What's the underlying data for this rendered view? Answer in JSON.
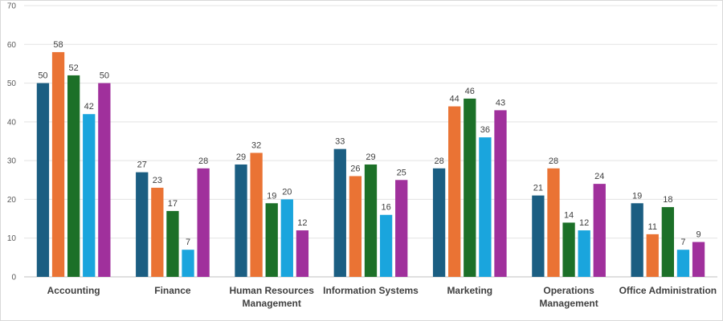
{
  "chart_data": {
    "type": "bar",
    "categories": [
      [
        "Accounting"
      ],
      [
        "Finance"
      ],
      [
        "Human Resources",
        "Management"
      ],
      [
        "Information Systems"
      ],
      [
        "Marketing"
      ],
      [
        "Operations",
        "Management"
      ],
      [
        "Office Administration"
      ]
    ],
    "series": [
      {
        "values": [
          50,
          27,
          29,
          33,
          28,
          21,
          19
        ],
        "color": "#1b5e82"
      },
      {
        "values": [
          58,
          23,
          32,
          26,
          44,
          28,
          11
        ],
        "color": "#ea7334"
      },
      {
        "values": [
          52,
          17,
          19,
          29,
          46,
          14,
          18
        ],
        "color": "#1c7028"
      },
      {
        "values": [
          42,
          7,
          20,
          16,
          36,
          12,
          7
        ],
        "color": "#1aa5dd"
      },
      {
        "values": [
          50,
          28,
          12,
          25,
          43,
          24,
          9
        ],
        "color": "#a0309c"
      }
    ],
    "ylim": [
      0,
      70
    ],
    "yticks": [
      0,
      10,
      20,
      30,
      40,
      50,
      60,
      70
    ],
    "grid": true,
    "legend": "none"
  }
}
